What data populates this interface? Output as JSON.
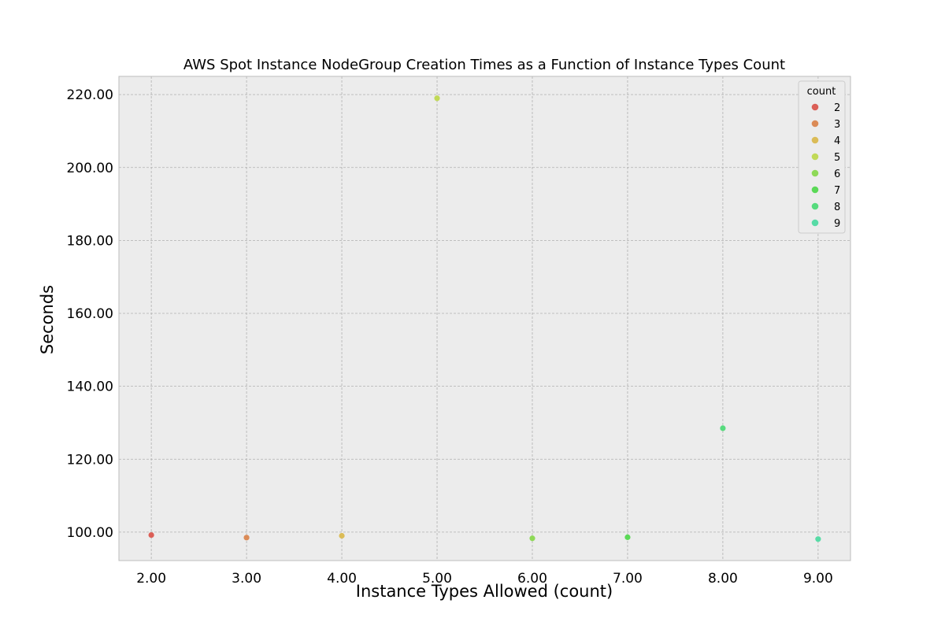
{
  "chart_data": {
    "type": "scatter",
    "title": "AWS Spot Instance NodeGroup Creation Times as a Function of Instance Types Count",
    "xlabel": "Instance Types Allowed (count)",
    "ylabel": "Seconds",
    "xlim": [
      1.66,
      9.34
    ],
    "ylim": [
      92.2,
      225.0
    ],
    "x_ticks": [
      2,
      3,
      4,
      5,
      6,
      7,
      8,
      9
    ],
    "y_ticks": [
      100,
      120,
      140,
      160,
      180,
      200,
      220
    ],
    "tick_format_decimals": 2,
    "grid": true,
    "legend": {
      "title": "count",
      "placement": "top-right",
      "entries": [
        "2",
        "3",
        "4",
        "5",
        "6",
        "7",
        "8",
        "9"
      ]
    },
    "points": [
      {
        "x": 2,
        "y": 99.2,
        "count": "2",
        "color": "#db5f57"
      },
      {
        "x": 3,
        "y": 98.5,
        "count": "3",
        "color": "#db8b57"
      },
      {
        "x": 4,
        "y": 99.0,
        "count": "4",
        "color": "#dbbc57"
      },
      {
        "x": 5,
        "y": 219.0,
        "count": "5",
        "color": "#c1d957"
      },
      {
        "x": 6,
        "y": 98.3,
        "count": "6",
        "color": "#8ed957"
      },
      {
        "x": 7,
        "y": 98.6,
        "count": "7",
        "color": "#5bd957"
      },
      {
        "x": 8,
        "y": 128.5,
        "count": "8",
        "color": "#57db7e"
      },
      {
        "x": 9,
        "y": 98.1,
        "count": "9",
        "color": "#57dba6"
      }
    ],
    "colors": {
      "plot_background": "#ececec",
      "grid": "#b0b0b0",
      "frame": "#bcbcbc"
    }
  }
}
